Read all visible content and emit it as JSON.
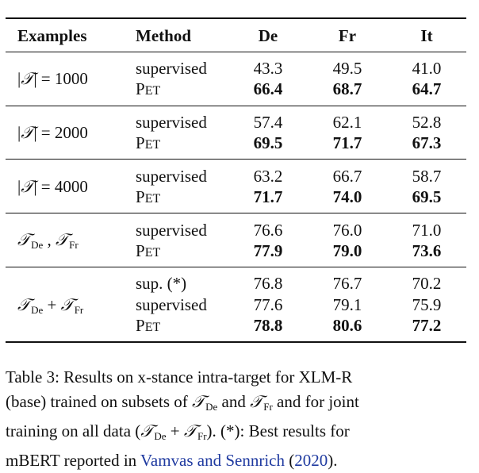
{
  "table": {
    "headers": [
      "Examples",
      "Method",
      "De",
      "Fr",
      "It"
    ],
    "groups": [
      {
        "examples": {
          "prefix": "|",
          "symbol": "𝒯",
          "suffix": "| = 1000"
        },
        "rows": [
          {
            "method": "supervised",
            "de": "43.3",
            "fr": "49.5",
            "it": "41.0",
            "bold": false
          },
          {
            "method": "PET",
            "de": "66.4",
            "fr": "68.7",
            "it": "64.7",
            "bold": true
          }
        ]
      },
      {
        "examples": {
          "prefix": "|",
          "symbol": "𝒯",
          "suffix": "| = 2000"
        },
        "rows": [
          {
            "method": "supervised",
            "de": "57.4",
            "fr": "62.1",
            "it": "52.8",
            "bold": false
          },
          {
            "method": "PET",
            "de": "69.5",
            "fr": "71.7",
            "it": "67.3",
            "bold": true
          }
        ]
      },
      {
        "examples": {
          "prefix": "|",
          "symbol": "𝒯",
          "suffix": "| = 4000"
        },
        "rows": [
          {
            "method": "supervised",
            "de": "63.2",
            "fr": "66.7",
            "it": "58.7",
            "bold": false
          },
          {
            "method": "PET",
            "de": "71.7",
            "fr": "74.0",
            "it": "69.5",
            "bold": true
          }
        ]
      },
      {
        "examples": {
          "t1": "𝒯",
          "s1": "De",
          "op": " , ",
          "t2": "𝒯",
          "s2": "Fr"
        },
        "rows": [
          {
            "method": "supervised",
            "de": "76.6",
            "fr": "76.0",
            "it": "71.0",
            "bold": false
          },
          {
            "method": "PET",
            "de": "77.9",
            "fr": "79.0",
            "it": "73.6",
            "bold": true
          }
        ]
      },
      {
        "examples": {
          "t1": "𝒯",
          "s1": "De",
          "op": " + ",
          "t2": "𝒯",
          "s2": "Fr"
        },
        "rows": [
          {
            "method": "sup. (*)",
            "de": "76.8",
            "fr": "76.7",
            "it": "70.2",
            "bold": false
          },
          {
            "method": "supervised",
            "de": "77.6",
            "fr": "79.1",
            "it": "75.9",
            "bold": false
          },
          {
            "method": "PET",
            "de": "78.8",
            "fr": "80.6",
            "it": "77.2",
            "bold": true
          }
        ]
      }
    ]
  },
  "caption": {
    "line1": "Table 3: Results on x-stance intra-target for XLM-R",
    "line2a": "(base) trained on subsets of ",
    "t": "𝒯",
    "de": "De",
    "fr": "Fr",
    "line2b": " and ",
    "line2c": " and for joint",
    "line3a": "training on all data (",
    "plus": " + ",
    "line3b": ").  (*): Best results for",
    "line4a": "mBERT reported in ",
    "link_authors": "Vamvas and Sennrich",
    "line4b": " (",
    "link_year": "2020",
    "line4c": ")."
  }
}
